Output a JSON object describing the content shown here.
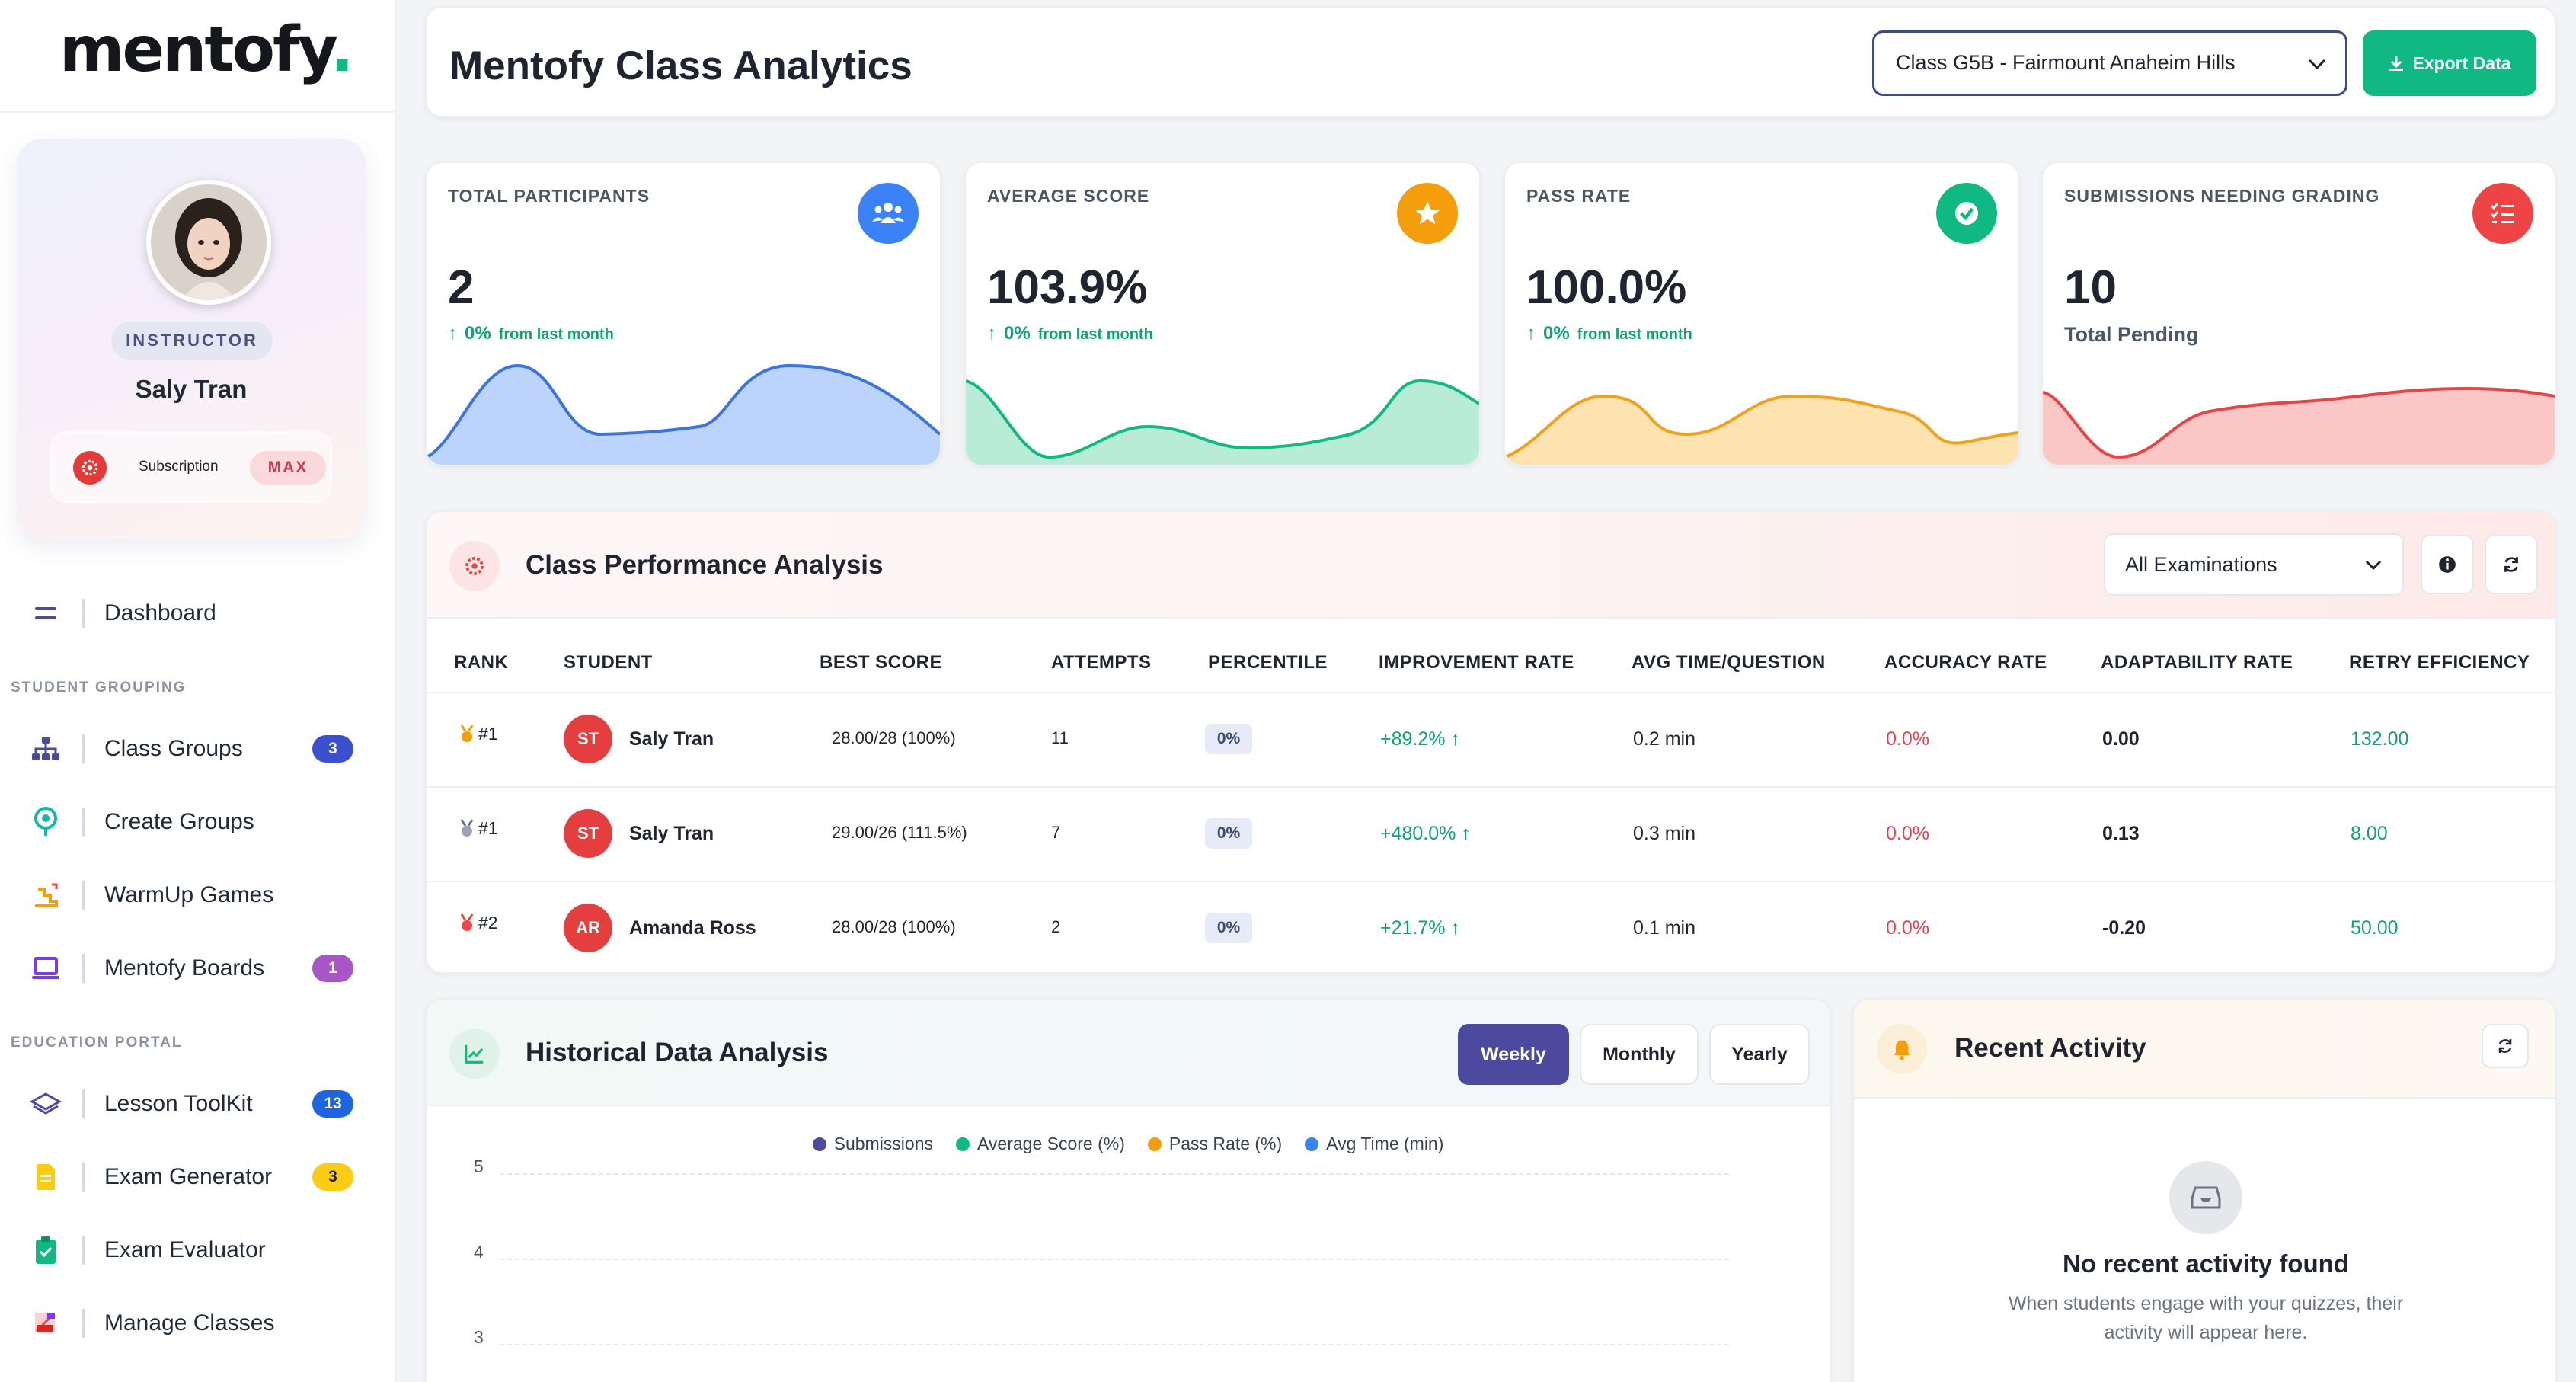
{
  "sidebar": {
    "logo": "mentofy",
    "logo_dot": ".",
    "profile": {
      "role": "INSTRUCTOR",
      "name": "Saly Tran",
      "subscription_label": "Subscription",
      "subscription_badge": "MAX"
    },
    "nav": {
      "dashboard": "Dashboard",
      "section_student_grouping": "STUDENT GROUPING",
      "class_groups": "Class Groups",
      "class_groups_badge": "3",
      "create_groups": "Create Groups",
      "warmup_games": "WarmUp Games",
      "mentofy_boards": "Mentofy Boards",
      "mentofy_boards_badge": "1",
      "section_education_portal": "EDUCATION PORTAL",
      "lesson_toolkit": "Lesson ToolKit",
      "lesson_toolkit_badge": "13",
      "exam_generator": "Exam Generator",
      "exam_generator_badge": "3",
      "exam_evaluator": "Exam Evaluator",
      "manage_classes": "Manage Classes"
    }
  },
  "header": {
    "title": "Mentofy Class Analytics",
    "class_select_value": "Class G5B - Fairmount Anaheim Hills",
    "export_label": "Export Data"
  },
  "stats": [
    {
      "label": "TOTAL PARTICIPANTS",
      "value": "2",
      "change": "0%",
      "change_suffix": "from last month",
      "icon": "users-icon",
      "color": "#3b82f6"
    },
    {
      "label": "AVERAGE SCORE",
      "value": "103.9%",
      "change": "0%",
      "change_suffix": "from last month",
      "icon": "star-icon",
      "color": "#f59e0b"
    },
    {
      "label": "PASS RATE",
      "value": "100.0%",
      "change": "0%",
      "change_suffix": "from last month",
      "icon": "check-circle-icon",
      "color": "#10b981"
    },
    {
      "label": "SUBMISSIONS NEEDING GRADING",
      "value": "10",
      "subtext": "Total Pending",
      "icon": "list-check-icon",
      "color": "#ef4444"
    }
  ],
  "performance": {
    "title": "Class Performance Analysis",
    "filter_value": "All Examinations",
    "columns": [
      "RANK",
      "STUDENT",
      "BEST SCORE",
      "ATTEMPTS",
      "PERCENTILE",
      "IMPROVEMENT RATE",
      "AVG TIME/QUESTION",
      "ACCURACY RATE",
      "ADAPTABILITY RATE",
      "RETRY EFFICIENCY"
    ],
    "rows": [
      {
        "rank": "#1",
        "medal_color": "#f59e0b",
        "initials": "ST",
        "name": "Saly Tran",
        "best_score": "28.00/28 (100%)",
        "attempts": "11",
        "percentile": "0%",
        "improvement": "+89.2%",
        "avg_time": "0.2 min",
        "accuracy": "0.0%",
        "adaptability": "0.00",
        "retry": "132.00"
      },
      {
        "rank": "#1",
        "medal_color": "#9ca3af",
        "initials": "ST",
        "name": "Saly Tran",
        "best_score": "29.00/26 (111.5%)",
        "attempts": "7",
        "percentile": "0%",
        "improvement": "+480.0%",
        "avg_time": "0.3 min",
        "accuracy": "0.0%",
        "adaptability": "0.13",
        "retry": "8.00"
      },
      {
        "rank": "#2",
        "medal_color": "#ef4444",
        "initials": "AR",
        "name": "Amanda Ross",
        "best_score": "28.00/28 (100%)",
        "attempts": "2",
        "percentile": "0%",
        "improvement": "+21.7%",
        "avg_time": "0.1 min",
        "accuracy": "0.0%",
        "adaptability": "-0.20",
        "retry": "50.00"
      }
    ]
  },
  "historical": {
    "title": "Historical Data Analysis",
    "tabs": [
      "Weekly",
      "Monthly",
      "Yearly"
    ],
    "active_tab": "Weekly",
    "legend": [
      {
        "name": "Submissions",
        "color": "#4c4a9e"
      },
      {
        "name": "Average Score (%)",
        "color": "#10b981"
      },
      {
        "name": "Pass Rate (%)",
        "color": "#f59e0b"
      },
      {
        "name": "Avg Time (min)",
        "color": "#3b82f6"
      }
    ],
    "y_ticks": [
      "5",
      "4",
      "3"
    ]
  },
  "activity": {
    "title": "Recent Activity",
    "empty_title": "No recent activity found",
    "empty_text": "When students engage with your quizzes, their activity will appear here."
  }
}
